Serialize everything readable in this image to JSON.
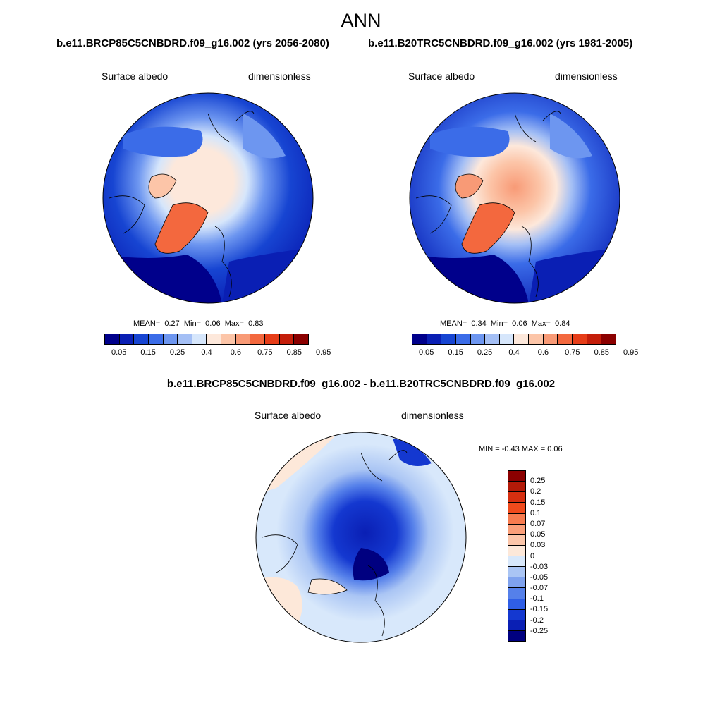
{
  "main_title": "ANN",
  "panels": [
    {
      "case_title": "b.e11.BRCP85C5CNBDRD.f09_g16.002 (yrs 2056-2080)",
      "left_label": "Surface albedo",
      "right_label": "dimensionless",
      "mean_label": "MEAN=",
      "mean": "0.27",
      "min_label": "Min=",
      "min": "0.06",
      "max_label": "Max=",
      "max": "0.83"
    },
    {
      "case_title": "b.e11.B20TRC5CNBDRD.f09_g16.002 (yrs 1981-2005)",
      "left_label": "Surface albedo",
      "right_label": "dimensionless",
      "mean_label": "MEAN=",
      "mean": "0.34",
      "min_label": "Min=",
      "min": "0.06",
      "max_label": "Max=",
      "max": "0.84"
    }
  ],
  "diff_panel": {
    "title": "b.e11.BRCP85C5CNBDRD.f09_g16.002 - b.e11.B20TRC5CNBDRD.f09_g16.002",
    "left_label": "Surface albedo",
    "right_label": "dimensionless",
    "minmax_text": "MIN =  -0.43 MAX =   0.06"
  },
  "chart_data": [
    {
      "type": "heatmap",
      "projection": "north polar stereographic",
      "title": "b.e11.BRCP85C5CNBDRD.f09_g16.002 (yrs 2056-2080)",
      "variable": "Surface albedo",
      "units": "dimensionless",
      "mean": 0.27,
      "min": 0.06,
      "max": 0.83,
      "colorbar_ticks": [
        "0.05",
        "0.15",
        "0.25",
        "0.4",
        "0.6",
        "0.75",
        "0.85",
        "0.95"
      ],
      "colorbar_colors": [
        "#00008b",
        "#0a1fb4",
        "#1745d2",
        "#3b6ce8",
        "#6d96f0",
        "#a4bff5",
        "#d6e6fb",
        "#fde8db",
        "#fcc5a8",
        "#f89a76",
        "#f3683e",
        "#e63d18",
        "#c41e0a",
        "#8b0000"
      ]
    },
    {
      "type": "heatmap",
      "projection": "north polar stereographic",
      "title": "b.e11.B20TRC5CNBDRD.f09_g16.002 (yrs 1981-2005)",
      "variable": "Surface albedo",
      "units": "dimensionless",
      "mean": 0.34,
      "min": 0.06,
      "max": 0.84,
      "colorbar_ticks": [
        "0.05",
        "0.15",
        "0.25",
        "0.4",
        "0.6",
        "0.75",
        "0.85",
        "0.95"
      ],
      "colorbar_colors": [
        "#00008b",
        "#0a1fb4",
        "#1745d2",
        "#3b6ce8",
        "#6d96f0",
        "#a4bff5",
        "#d6e6fb",
        "#fde8db",
        "#fcc5a8",
        "#f89a76",
        "#f3683e",
        "#e63d18",
        "#c41e0a",
        "#8b0000"
      ]
    },
    {
      "type": "heatmap",
      "projection": "north polar stereographic",
      "title": "b.e11.BRCP85C5CNBDRD.f09_g16.002 - b.e11.B20TRC5CNBDRD.f09_g16.002",
      "variable": "Surface albedo",
      "units": "dimensionless",
      "min": -0.43,
      "max": 0.06,
      "colorbar_ticks": [
        "0.25",
        "0.2",
        "0.15",
        "0.1",
        "0.07",
        "0.05",
        "0.03",
        "0",
        "-0.03",
        "-0.05",
        "-0.07",
        "-0.1",
        "-0.15",
        "-0.2",
        "-0.25"
      ],
      "colorbar_colors": [
        "#8b0000",
        "#b31a08",
        "#d62f10",
        "#f04a1c",
        "#f77b4f",
        "#fa9f7a",
        "#fcc6aa",
        "#fde8d9",
        "#d8e8fb",
        "#aac5f4",
        "#7fa2ee",
        "#5580ea",
        "#2f5ee6",
        "#1438d0",
        "#0a1fb4",
        "#000080"
      ]
    }
  ]
}
